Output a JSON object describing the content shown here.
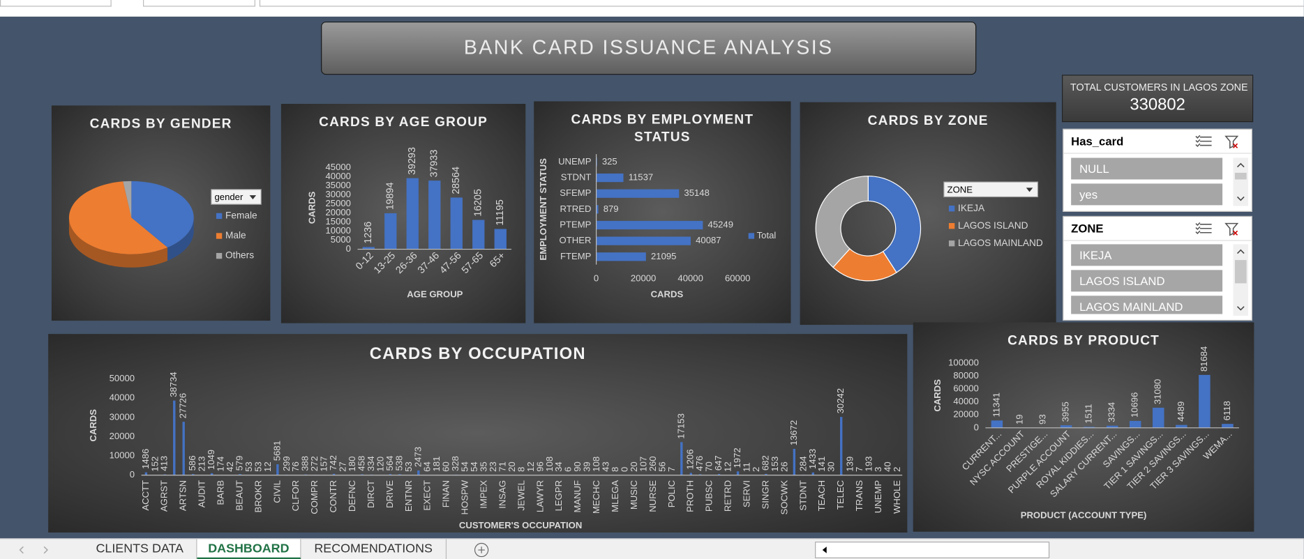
{
  "header": {
    "title": "BANK CARD ISSUANCE ANALYSIS"
  },
  "kpi": {
    "label": "TOTAL CUSTOMERS IN LAGOS ZONE",
    "value": 330802
  },
  "slicers": [
    {
      "title": "Has_card",
      "items": [
        "NULL",
        "yes"
      ]
    },
    {
      "title": "ZONE",
      "items": [
        "IKEJA",
        "LAGOS ISLAND",
        "LAGOS MAINLAND"
      ]
    }
  ],
  "tabs": {
    "items": [
      "CLIENTS DATA",
      "DASHBOARD",
      "RECOMENDATIONS"
    ],
    "active": 1
  },
  "chart_data": [
    {
      "type": "pie",
      "title": "CARDS BY GENDER",
      "legend_title": "gender",
      "categories": [
        "Female",
        "Male",
        "Others"
      ],
      "values": [
        62000,
        89000,
        3300
      ],
      "colors": [
        "#4472c4",
        "#ed7d31",
        "#a5a5a5"
      ],
      "legend": "right"
    },
    {
      "type": "bar",
      "title": "CARDS BY AGE GROUP",
      "xlabel": "AGE GROUP",
      "ylabel": "CARDS",
      "categories": [
        "0-12",
        "13-25",
        "26-36",
        "37-46",
        "47-56",
        "57-65",
        "65+"
      ],
      "values": [
        1236,
        19894,
        39293,
        37933,
        28564,
        16205,
        11195
      ],
      "color": "#4472c4",
      "ylim": [
        0,
        45000
      ],
      "yticks": [
        0,
        5000,
        10000,
        15000,
        20000,
        25000,
        30000,
        35000,
        40000,
        45000
      ]
    },
    {
      "type": "bar",
      "orientation": "horizontal",
      "title": "CARDS BY EMPLOYMENT STATUS",
      "xlabel": "CARDS",
      "ylabel": "EMPLOYMENT STATUS",
      "categories": [
        "UNEMP",
        "STDNT",
        "SFEMP",
        "RTRED",
        "PTEMP",
        "OTHER",
        "FTEMP"
      ],
      "series": [
        {
          "name": "Total",
          "color": "#4472c4",
          "values": [
            325,
            11537,
            35148,
            879,
            45249,
            40087,
            21095
          ]
        }
      ],
      "xlim": [
        0,
        60000
      ],
      "xticks": [
        0,
        20000,
        40000,
        60000
      ],
      "legend": "right"
    },
    {
      "type": "donut",
      "title": "CARDS BY ZONE",
      "legend_title": "ZONE",
      "categories": [
        "IKEJA",
        "LAGOS ISLAND",
        "LAGOS MAINLAND"
      ],
      "values": [
        63000,
        32000,
        59000
      ],
      "colors": [
        "#4472c4",
        "#ed7d31",
        "#a5a5a5"
      ],
      "legend": "right"
    },
    {
      "type": "bar",
      "title": "CARDS BY OCCUPATION",
      "xlabel": "CUSTOMER'S OCCUPATION",
      "ylabel": "CARDS",
      "categories": [
        "ACCTT",
        null,
        "AGRST",
        null,
        "ARTSN",
        null,
        "AUDIT",
        null,
        "BARB",
        null,
        "BEAUT",
        null,
        "BROKR",
        null,
        "CIVIL",
        null,
        "CLFOR",
        null,
        "COMPR",
        null,
        "CONTR",
        null,
        "DEFNC",
        null,
        "DIRCT",
        null,
        "DRIVE",
        null,
        "ENTNR",
        null,
        "EXECT",
        null,
        "FINAN",
        null,
        "HOSPW",
        null,
        "IMPEX",
        null,
        "INSAG",
        null,
        "JEWEL",
        null,
        "LAWYR",
        null,
        "LEGPR",
        null,
        "MANUF",
        null,
        "MECHC",
        null,
        "MLEGA",
        null,
        "MUSIC",
        null,
        "NURSE",
        null,
        "POLIC",
        null,
        "PROTH",
        null,
        "PUBSC",
        null,
        "RETRD",
        null,
        "SERVI",
        null,
        "SINGR",
        null,
        "SOCWK",
        null,
        "STDNT",
        null,
        "TEACH",
        null,
        "TELEC",
        null,
        "TRANS",
        null,
        "UNEMP",
        null,
        "WHOLE"
      ],
      "values": [
        1486,
        152,
        413,
        38734,
        27726,
        586,
        213,
        1049,
        174,
        42,
        579,
        53,
        53,
        12,
        5681,
        299,
        76,
        388,
        272,
        157,
        742,
        27,
        180,
        458,
        334,
        120,
        564,
        538,
        53,
        2473,
        64,
        181,
        60,
        328,
        54,
        54,
        35,
        23,
        71,
        20,
        8,
        12,
        96,
        108,
        34,
        6,
        90,
        39,
        108,
        43,
        8,
        0,
        20,
        107,
        260,
        56,
        7,
        17153,
        1206,
        476,
        70,
        647,
        12,
        1972,
        11,
        2,
        682,
        153,
        26,
        13672,
        284,
        1433,
        141,
        30,
        30242,
        139,
        7,
        193,
        3,
        40,
        2
      ],
      "color": "#4472c4",
      "ylim": [
        0,
        50000
      ],
      "yticks": [
        0,
        10000,
        20000,
        30000,
        40000,
        50000
      ]
    },
    {
      "type": "bar",
      "title": "CARDS BY PRODUCT",
      "xlabel": "PRODUCT (ACCOUNT TYPE)",
      "ylabel": "CARDS",
      "categories": [
        "CURRENT...",
        "NYSC ACCOUNT",
        "PRESTIGE...",
        "PURPLE ACCOUNT",
        "ROYAL KIDDIES...",
        "SALARY CURRENT...",
        "SAVINGS...",
        "TIER 1 SAVINGS...",
        "TIER 2 SAVINGS...",
        "TIER 3 SAVINGS...",
        "WEMA..."
      ],
      "values": [
        11341,
        19,
        93,
        3955,
        1511,
        3334,
        10696,
        31080,
        4489,
        81684,
        6118
      ],
      "color": "#4472c4",
      "ylim": [
        0,
        100000
      ],
      "yticks": [
        0,
        20000,
        40000,
        60000,
        80000,
        100000
      ]
    }
  ]
}
